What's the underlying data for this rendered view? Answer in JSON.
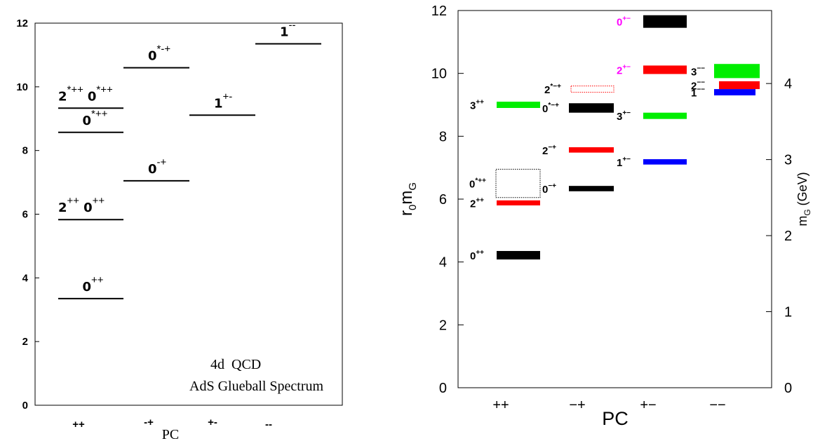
{
  "chart_data": [
    {
      "type": "bar",
      "title": "",
      "annotation_lines": [
        "4d  QCD",
        "AdS Glueball Spectrum"
      ],
      "xlabel": "PC",
      "ylabel": "",
      "ylim": [
        0,
        12
      ],
      "yticks": [
        "0",
        "2",
        "4",
        "6",
        "8",
        "10",
        "12"
      ],
      "categories": [
        "++",
        "-+",
        "+-",
        "--"
      ],
      "grid": false,
      "levels": [
        {
          "label": "0",
          "sup": "++",
          "category": "++",
          "value": 3.35
        },
        {
          "label": "2",
          "sup": "++",
          "label2": "0",
          "sup2": "++",
          "category": "++",
          "value": 5.83
        },
        {
          "label": "0",
          "sup": "*++",
          "category": "++",
          "value": 8.57
        },
        {
          "label": "2",
          "sup": "*++",
          "label2": "0",
          "sup2": "*++",
          "category": "++",
          "value": 9.33
        },
        {
          "label": "0",
          "sup": "-+",
          "category": "-+",
          "value": 7.05
        },
        {
          "label": "0",
          "sup": "*-+",
          "category": "-+",
          "value": 10.6
        },
        {
          "label": "1",
          "sup": "+-",
          "category": "+-",
          "value": 9.11
        },
        {
          "label": "1",
          "sup": "--",
          "category": "--",
          "value": 11.35
        }
      ]
    },
    {
      "type": "bar",
      "title": "",
      "xlabel": "PC",
      "ylabel": "r0mG",
      "ylabel_main": "r",
      "ylabel_sub1": "0",
      "ylabel_mid": "m",
      "ylabel_sub2": "G",
      "y2label": "mG (GeV)",
      "y2label_main": "m",
      "y2label_sub": "G",
      "y2label_rest": " (GeV)",
      "ylim": [
        0,
        12
      ],
      "yticks": [
        "0",
        "2",
        "4",
        "6",
        "8",
        "10",
        "12"
      ],
      "y2lim": [
        0,
        4.96
      ],
      "y2ticks": [
        "0",
        "1",
        "2",
        "3",
        "4"
      ],
      "categories": [
        "++",
        "−+",
        "+−",
        "−−"
      ],
      "grid": false,
      "states": [
        {
          "label": "0",
          "sup": "++",
          "category": 0,
          "low": 4.08,
          "high": 4.35,
          "color": "#000000",
          "dotted": false,
          "label_color": "#000000"
        },
        {
          "label": "2",
          "sup": "++",
          "category": 0,
          "low": 5.8,
          "high": 5.96,
          "color": "#ff0000",
          "dotted": false,
          "label_color": "#000000"
        },
        {
          "label": "0",
          "sup": "*++",
          "category": 0,
          "low": 6.05,
          "high": 6.95,
          "color": "#000000",
          "dotted": true,
          "label_color": "#000000"
        },
        {
          "label": "3",
          "sup": "++",
          "category": 0,
          "low": 8.9,
          "high": 9.1,
          "color": "#00ee00",
          "dotted": false,
          "label_color": "#000000"
        },
        {
          "label": "0",
          "sup": "−+",
          "category": 1,
          "low": 6.25,
          "high": 6.42,
          "color": "#000000",
          "dotted": false,
          "label_color": "#000000"
        },
        {
          "label": "2",
          "sup": "−+",
          "category": 1,
          "low": 7.48,
          "high": 7.65,
          "color": "#ff0000",
          "dotted": false,
          "label_color": "#000000"
        },
        {
          "label": "0",
          "sup": "*−+",
          "category": 1,
          "low": 8.75,
          "high": 9.05,
          "color": "#000000",
          "dotted": false,
          "label_color": "#000000"
        },
        {
          "label": "2",
          "sup": "*−+",
          "category": 1,
          "low": 9.4,
          "high": 9.6,
          "color": "#ff0000",
          "dotted": true,
          "label_color": "#000000"
        },
        {
          "label": "1",
          "sup": "+−",
          "category": 2,
          "low": 7.1,
          "high": 7.27,
          "color": "#0000ff",
          "dotted": false,
          "label_color": "#000000"
        },
        {
          "label": "3",
          "sup": "+−",
          "category": 2,
          "low": 8.55,
          "high": 8.75,
          "color": "#00ee00",
          "dotted": false,
          "label_color": "#000000"
        },
        {
          "label": "2",
          "sup": "+−",
          "category": 2,
          "low": 9.98,
          "high": 10.25,
          "color": "#ff0000",
          "dotted": false,
          "label_color": "#ff00ff"
        },
        {
          "label": "0",
          "sup": "+−",
          "category": 2,
          "low": 11.45,
          "high": 11.85,
          "color": "#000000",
          "dotted": false,
          "label_color": "#ff00ff"
        },
        {
          "label": "1",
          "sup": "−−",
          "category": 3,
          "low": 9.3,
          "high": 9.5,
          "color": "#0000ff",
          "dotted": false,
          "label_color": "#000000"
        },
        {
          "label": "2",
          "sup": "−−",
          "category": 3,
          "low": 9.5,
          "high": 9.75,
          "color": "#ff0000",
          "dotted": false,
          "label_color": "#000000"
        },
        {
          "label": "3",
          "sup": "−−",
          "category": 3,
          "low": 9.85,
          "high": 10.3,
          "color": "#00ee00",
          "dotted": false,
          "label_color": "#000000"
        }
      ]
    }
  ]
}
